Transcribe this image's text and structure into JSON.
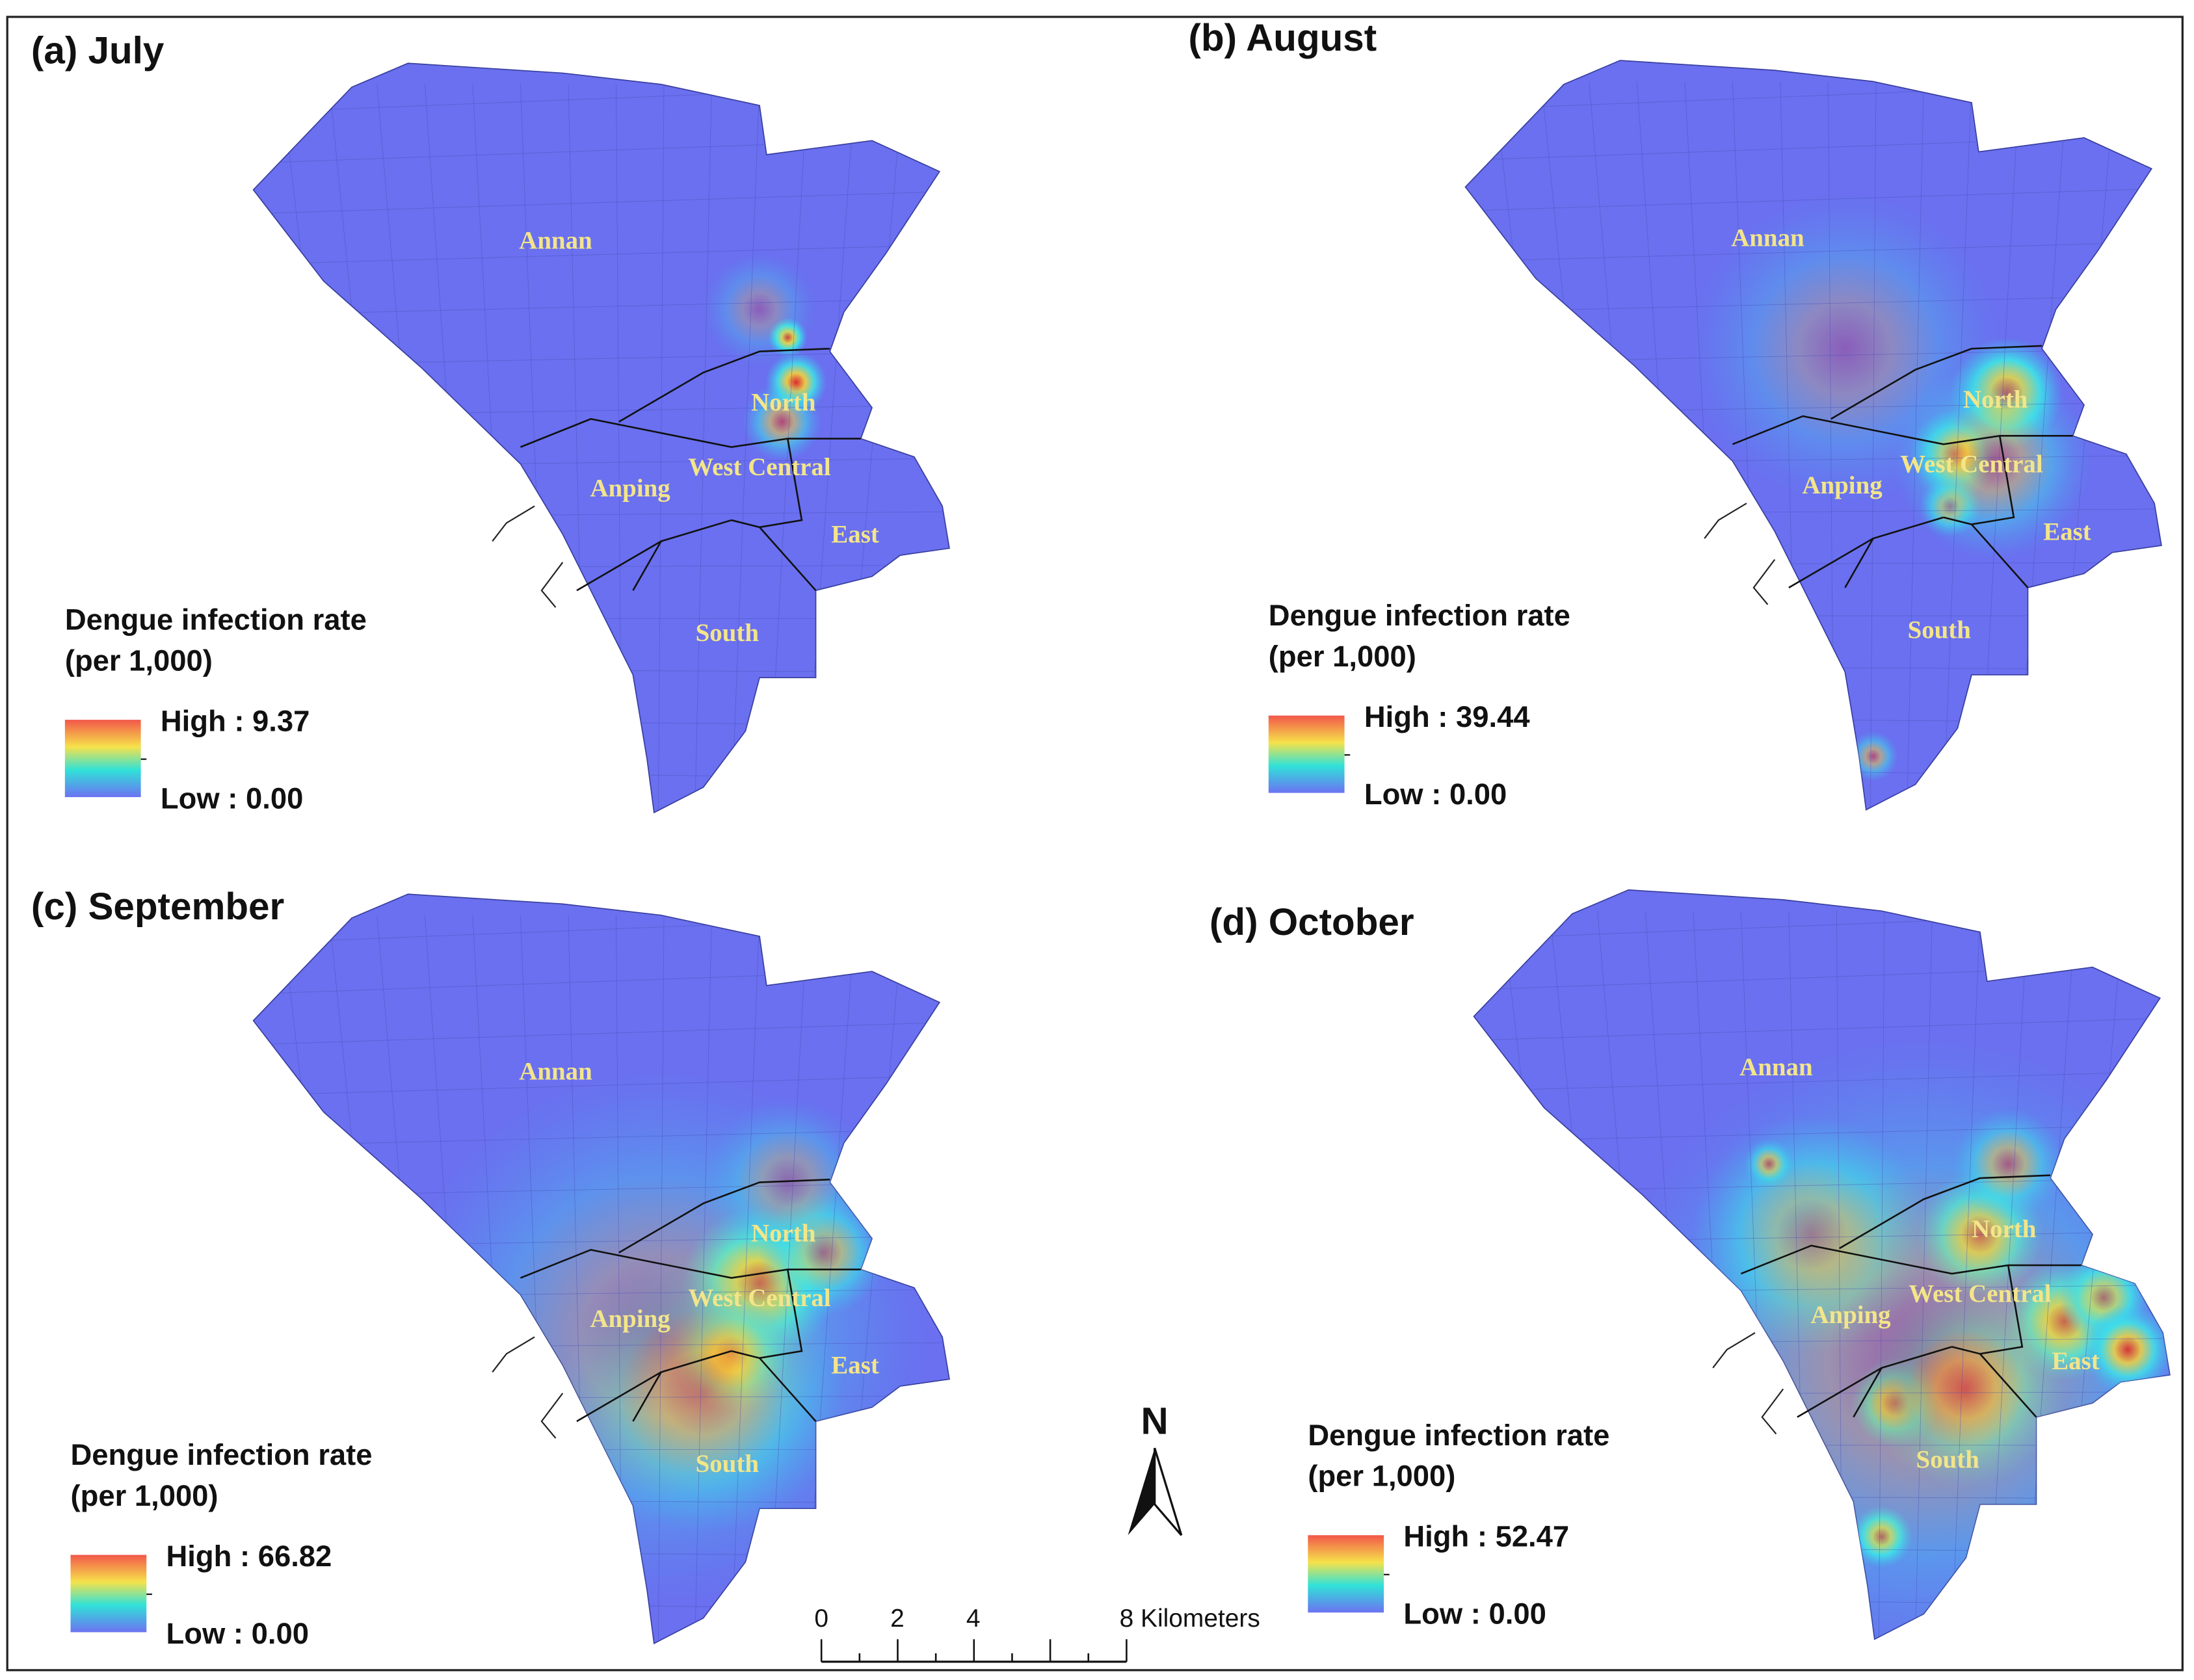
{
  "panels": [
    {
      "title": "(a) July",
      "districts": [
        "Annan",
        "North",
        "West Central",
        "Anping",
        "East",
        "South"
      ],
      "legend": {
        "title_lines": [
          "Dengue infection rate",
          "(per 1,000)"
        ],
        "high": "High : 9.37",
        "low": "Low : 0.00"
      }
    },
    {
      "title": "(b) August",
      "districts": [
        "Annan",
        "North",
        "West Central",
        "Anping",
        "East",
        "South"
      ],
      "legend": {
        "title_lines": [
          "Dengue infection rate",
          "(per 1,000)"
        ],
        "high": "High : 39.44",
        "low": "Low : 0.00"
      }
    },
    {
      "title": "(c) September",
      "districts": [
        "Annan",
        "North",
        "West Central",
        "Anping",
        "East",
        "South"
      ],
      "legend": {
        "title_lines": [
          "Dengue infection rate",
          "(per 1,000)"
        ],
        "high": "High : 66.82",
        "low": "Low : 0.00"
      }
    },
    {
      "title": "(d) October",
      "districts": [
        "Annan",
        "North",
        "West Central",
        "Anping",
        "East",
        "South"
      ],
      "legend": {
        "title_lines": [
          "Dengue infection rate",
          "(per 1,000)"
        ],
        "high": "High : 52.47",
        "low": "Low : 0.00"
      }
    }
  ],
  "north_arrow": "N",
  "scale_bar": [
    "0",
    "2",
    "4",
    "8 Kilometers"
  ]
}
